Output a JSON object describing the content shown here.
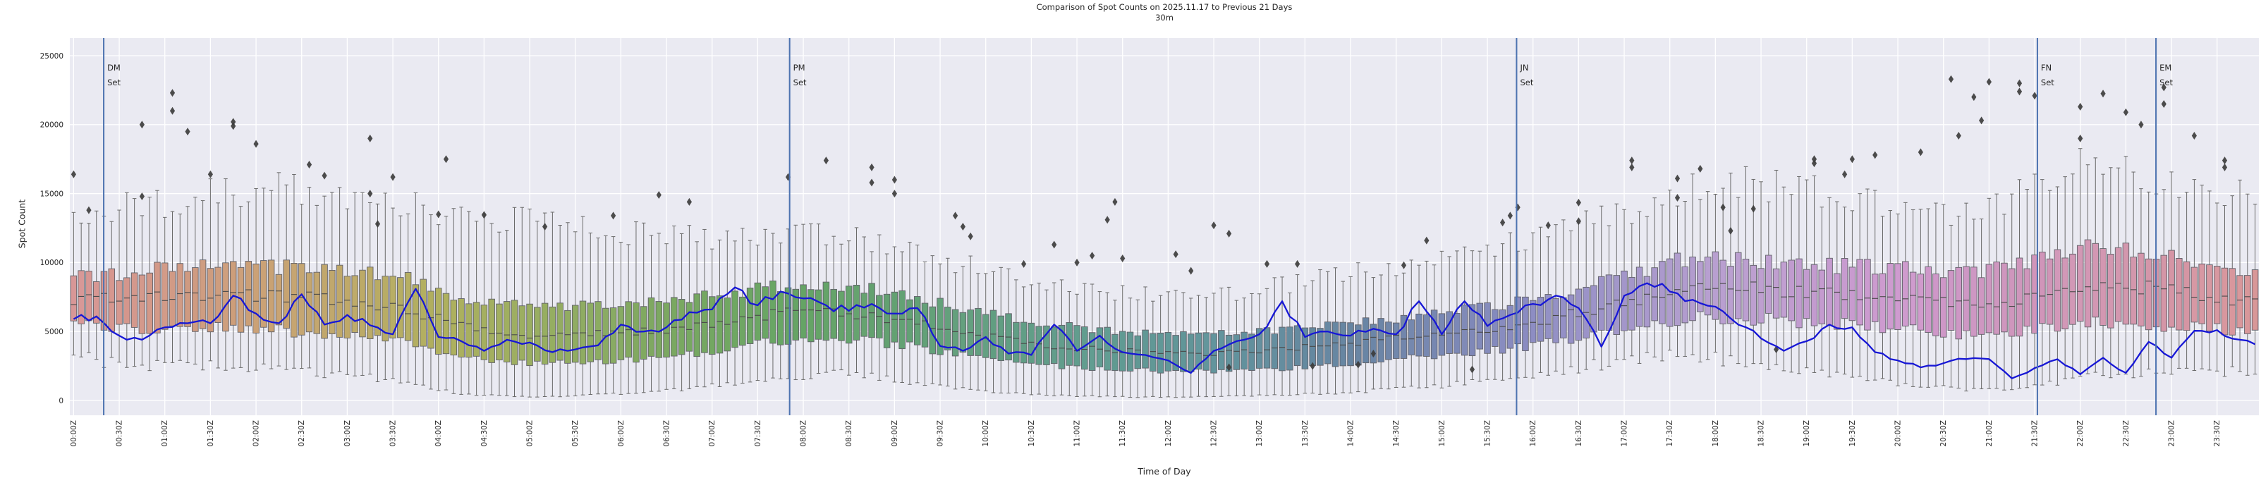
{
  "title": {
    "line1": "Comparison of Spot Counts on 2025.11.17 to Previous 21 Days",
    "line2": "30m"
  },
  "axes": {
    "x_label": "Time of Day",
    "y_label": "Spot Count",
    "y_ticks": [
      0,
      5000,
      10000,
      15000,
      20000,
      25000
    ],
    "x_tick_labels": [
      "00:00Z",
      "00:30Z",
      "01:00Z",
      "01:30Z",
      "02:00Z",
      "02:30Z",
      "03:00Z",
      "03:30Z",
      "04:00Z",
      "04:30Z",
      "05:00Z",
      "05:30Z",
      "06:00Z",
      "06:30Z",
      "07:00Z",
      "07:30Z",
      "08:00Z",
      "08:30Z",
      "09:00Z",
      "09:30Z",
      "10:00Z",
      "10:30Z",
      "11:00Z",
      "11:30Z",
      "12:00Z",
      "12:30Z",
      "13:00Z",
      "13:30Z",
      "14:00Z",
      "14:30Z",
      "15:00Z",
      "15:30Z",
      "16:00Z",
      "16:30Z",
      "17:00Z",
      "17:30Z",
      "18:00Z",
      "18:30Z",
      "19:00Z",
      "19:30Z",
      "20:00Z",
      "20:30Z",
      "21:00Z",
      "21:30Z",
      "22:00Z",
      "22:30Z",
      "23:00Z",
      "23:30Z"
    ]
  },
  "annotations": {
    "set_lines": [
      {
        "name": "DM Set",
        "line1": "DM",
        "line2": "Set",
        "hour": 0.33
      },
      {
        "name": "PM Set",
        "line1": "PM",
        "line2": "Set",
        "hour": 7.85
      },
      {
        "name": "JN Set",
        "line1": "JN",
        "line2": "Set",
        "hour": 15.82
      },
      {
        "name": "FN Set",
        "line1": "FN",
        "line2": "Set",
        "hour": 21.53
      },
      {
        "name": "EM Set",
        "line1": "EM",
        "line2": "Set",
        "hour": 22.83
      }
    ]
  },
  "style": {
    "figure_bg": "#ffffff",
    "plot_bg": "#eaeaf2",
    "grid_color": "#ffffff",
    "today_line_color": "#1717d6",
    "set_line_color": "#4c72b0",
    "outlier_color": "#3d3d3d",
    "box_edge_color": "#62626a",
    "median_color": "#4a4a4a",
    "whisker_color": "#6a6a6a",
    "text_color": "#262626",
    "box_hue_cycle": "time-of-day hue wheel: red->olive->green->teal->blue->purple->pink->red"
  },
  "chart_data": {
    "type": "boxplot+line",
    "title": "Comparison of Spot Counts on 2025.11.17 to Previous 21 Days",
    "subtitle": "30m",
    "xlabel": "Time of Day",
    "ylabel": "Spot Count",
    "ylim": [
      0,
      26300
    ],
    "grid": true,
    "box_interval_minutes": 5,
    "anchor_interval_minutes": 30,
    "anchor_times": [
      "00:00",
      "00:30",
      "01:00",
      "01:30",
      "02:00",
      "02:30",
      "03:00",
      "03:30",
      "04:00",
      "04:30",
      "05:00",
      "05:30",
      "06:00",
      "06:30",
      "07:00",
      "07:30",
      "08:00",
      "08:30",
      "09:00",
      "09:30",
      "10:00",
      "10:30",
      "11:00",
      "11:30",
      "12:00",
      "12:30",
      "13:00",
      "13:30",
      "14:00",
      "14:30",
      "15:00",
      "15:30",
      "16:00",
      "16:30",
      "17:00",
      "17:30",
      "18:00",
      "18:30",
      "19:00",
      "19:30",
      "20:00",
      "20:30",
      "21:00",
      "21:30",
      "22:00",
      "22:30",
      "23:00",
      "23:30"
    ],
    "boxes_series_name": "Previous 21 Days distribution",
    "medians": [
      7300,
      7600,
      7700,
      7700,
      7600,
      7400,
      7100,
      6500,
      5600,
      4900,
      4700,
      4800,
      5000,
      5300,
      5800,
      6300,
      6400,
      6200,
      5700,
      5000,
      4400,
      4000,
      3700,
      3500,
      3400,
      3500,
      3700,
      4000,
      4300,
      4600,
      4900,
      5300,
      5900,
      6700,
      7400,
      8200,
      8200,
      8000,
      7800,
      7700,
      7400,
      7000,
      7100,
      7700,
      8400,
      8200,
      7800,
      7300
    ],
    "q1": [
      5500,
      5200,
      5400,
      5300,
      5100,
      4800,
      4600,
      4100,
      3300,
      2800,
      2700,
      2800,
      3000,
      3300,
      3800,
      4300,
      4500,
      4300,
      3900,
      3300,
      2800,
      2500,
      2300,
      2200,
      2100,
      2200,
      2300,
      2500,
      2800,
      3100,
      3400,
      3700,
      4200,
      4900,
      5500,
      6000,
      6000,
      5800,
      5600,
      5400,
      5100,
      4700,
      4800,
      5300,
      5700,
      5500,
      5300,
      5100
    ],
    "q3": [
      8900,
      9300,
      9700,
      9600,
      9700,
      9600,
      9400,
      8800,
      7600,
      7000,
      6700,
      6900,
      7100,
      7300,
      7800,
      8300,
      8400,
      8100,
      7500,
      6700,
      6000,
      5500,
      5100,
      4900,
      4800,
      4900,
      5100,
      5400,
      5800,
      6100,
      6500,
      7000,
      7700,
      8600,
      9500,
      10300,
      10200,
      10000,
      9800,
      9700,
      9500,
      9200,
      9600,
      10600,
      11200,
      10700,
      10100,
      9500
    ],
    "whisker_low": [
      3000,
      2400,
      2700,
      2500,
      2300,
      2000,
      1700,
      1200,
      500,
      300,
      300,
      400,
      600,
      800,
      1200,
      1600,
      2000,
      1800,
      1300,
      900,
      600,
      400,
      300,
      250,
      250,
      300,
      400,
      500,
      700,
      900,
      1200,
      1600,
      2100,
      2600,
      3100,
      3300,
      2900,
      2300,
      1900,
      1500,
      1100,
      800,
      900,
      1300,
      1800,
      2000,
      2100,
      2100
    ],
    "whisker_high": [
      13500,
      14200,
      14500,
      15200,
      15500,
      15000,
      14800,
      14000,
      13600,
      13200,
      12800,
      12500,
      12000,
      11800,
      12000,
      12300,
      12200,
      11500,
      10800,
      10000,
      9200,
      8600,
      8000,
      7700,
      7500,
      7800,
      8300,
      9000,
      9500,
      10000,
      10600,
      11300,
      12100,
      13000,
      14000,
      15300,
      16000,
      15500,
      15000,
      14600,
      14100,
      13700,
      14500,
      16500,
      17300,
      16200,
      15500,
      15000
    ],
    "outliers": [
      [
        13800,
        16400
      ],
      [
        20000,
        14800
      ],
      [
        22300,
        21000,
        19500
      ],
      [
        19900,
        16400
      ],
      [
        20200,
        18600
      ],
      [
        17100,
        16300
      ],
      [
        19000,
        15000
      ],
      [
        16200,
        12800
      ],
      [
        17500,
        13500
      ],
      [
        13450
      ],
      [
        12600
      ],
      [],
      [
        13400
      ],
      [
        14900
      ],
      [
        14400
      ],
      [],
      [
        17400,
        16200
      ],
      [
        16900,
        15800
      ],
      [
        16000,
        15000
      ],
      [
        13400,
        12600
      ],
      [
        11900
      ],
      [
        11300,
        9900
      ],
      [
        10500,
        10000
      ],
      [
        14400,
        13100,
        10300
      ],
      [
        10600,
        9400
      ],
      [
        12700,
        12100,
        2400
      ],
      [
        9900
      ],
      [
        9900,
        2500
      ],
      [
        3400,
        2600
      ],
      [
        9800
      ],
      [
        11600
      ],
      [
        13400,
        12900,
        2250
      ],
      [
        14000,
        12700
      ],
      [
        14350,
        13000
      ],
      [
        17400,
        16900
      ],
      [
        16100,
        14700
      ],
      [
        16800,
        14000,
        12300
      ],
      [
        13900,
        3700
      ],
      [
        17500,
        17200
      ],
      [
        17500,
        16400
      ],
      [
        18000,
        17800
      ],
      [
        23300,
        19200
      ],
      [
        23100,
        22000,
        20300
      ],
      [
        23000,
        22400,
        22100
      ],
      [
        22250,
        21300,
        19000
      ],
      [
        20900,
        20000
      ],
      [
        22700,
        21500
      ],
      [
        19200,
        17400,
        16900
      ]
    ],
    "line_series": {
      "name": "2025.11.17",
      "interval_minutes": 15,
      "values": [
        5900,
        6100,
        4700,
        4400,
        5300,
        5600,
        5600,
        7600,
        6300,
        5600,
        7700,
        5500,
        6200,
        5450,
        4800,
        8100,
        4600,
        4300,
        3600,
        4400,
        4200,
        3500,
        3700,
        4000,
        5500,
        5000,
        5300,
        6400,
        6600,
        8200,
        6900,
        7900,
        7400,
        6900,
        6500,
        7000,
        6300,
        6700,
        3950,
        3600,
        4600,
        3400,
        3300,
        5500,
        3600,
        4700,
        3500,
        3300,
        2900,
        2000,
        3600,
        4300,
        4800,
        7200,
        4600,
        5000,
        4700,
        5200,
        4800,
        7200,
        4800,
        7200,
        5400,
        6200,
        7000,
        7600,
        6700,
        3900,
        7600,
        8500,
        7900,
        7300,
        6800,
        5500,
        4500,
        3600,
        4300,
        5500,
        5300,
        3500,
        2900,
        2400,
        2700,
        3000,
        3000,
        1600,
        2350,
        2990,
        1900,
        3100,
        2000,
        4250,
        3100,
        5050,
        5100,
        4400
      ]
    }
  }
}
